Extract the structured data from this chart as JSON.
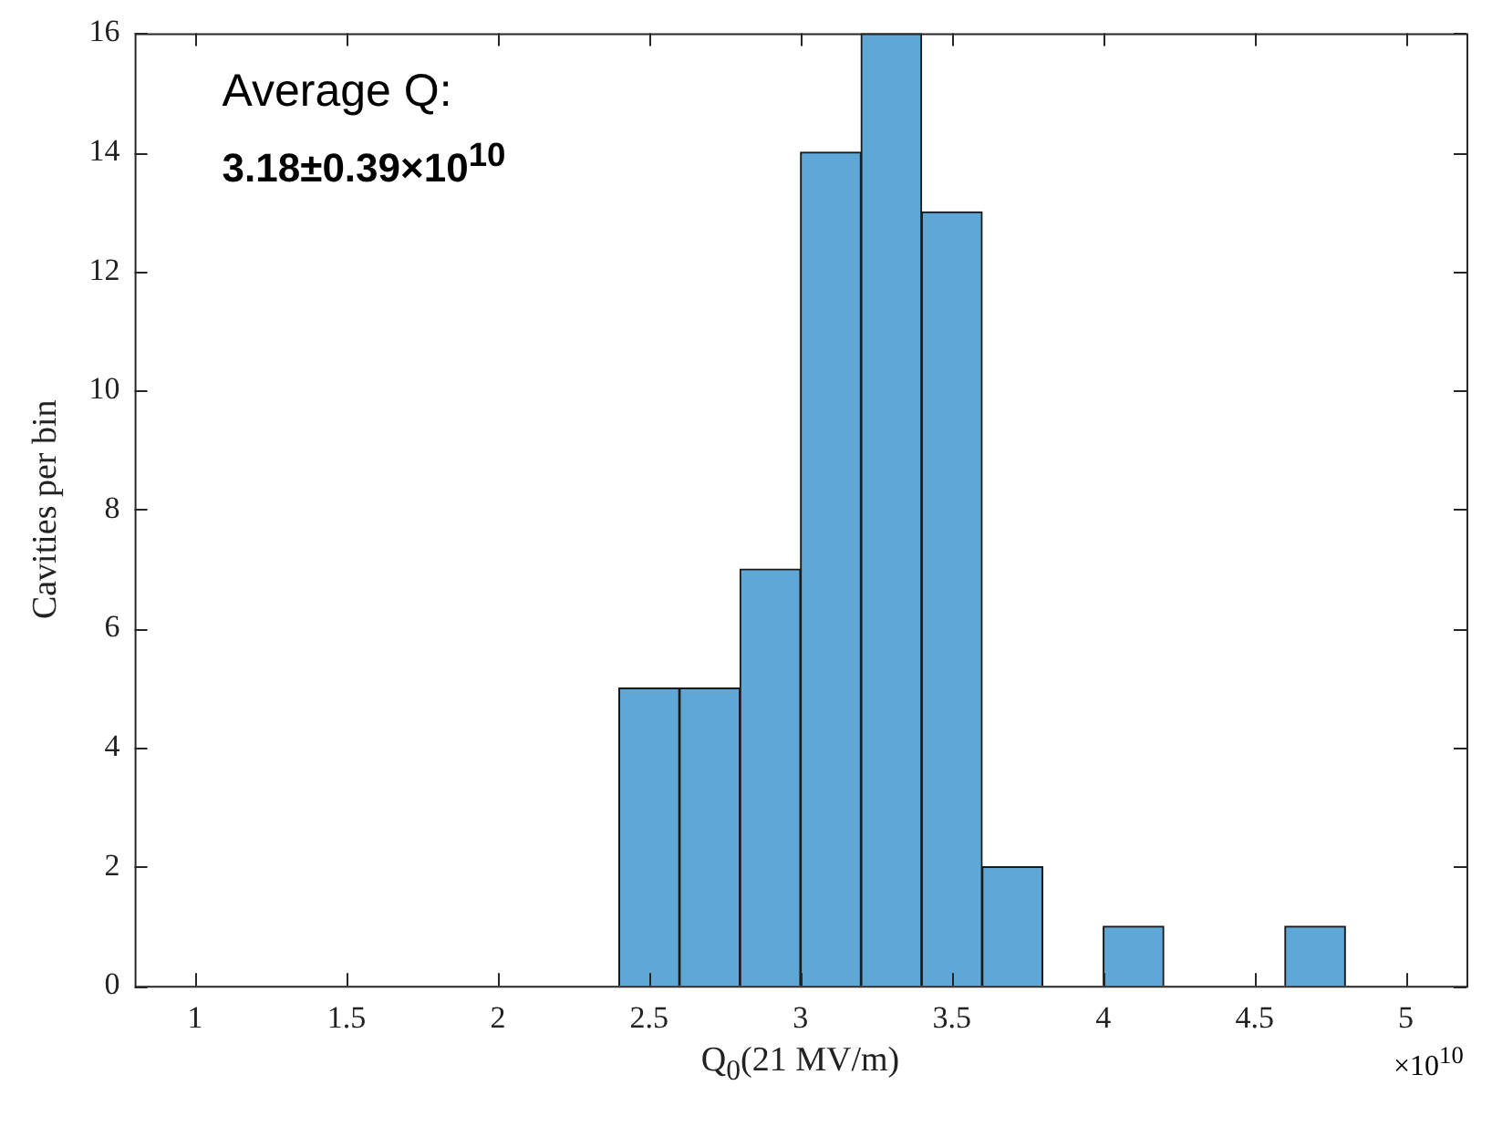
{
  "chart_data": {
    "type": "histogram",
    "bins": [
      2.4,
      2.6,
      2.8,
      3.0,
      3.2,
      3.4,
      3.6,
      3.8,
      4.0,
      4.2,
      4.4,
      4.6,
      4.8
    ],
    "values": [
      5,
      5,
      7,
      14,
      16,
      13,
      2,
      0,
      1,
      0,
      0,
      1
    ],
    "color": "#5fa7d7",
    "xlabel": "Q$_{0}$(21 MV/m)",
    "ylabel": "Cavities per bin",
    "xlim": [
      0.8,
      5.2
    ],
    "xticks": [
      1,
      1.5,
      2,
      2.5,
      3,
      3.5,
      4,
      4.5,
      5
    ],
    "ylim": [
      0,
      16
    ],
    "yticks": [
      0,
      2,
      4,
      6,
      8,
      10,
      12,
      14,
      16
    ],
    "grid": false,
    "legend": false,
    "annotations": [
      "Average Q:",
      "3.18±0.39×10$^{10}$",
      "×10$^{10}$"
    ]
  }
}
